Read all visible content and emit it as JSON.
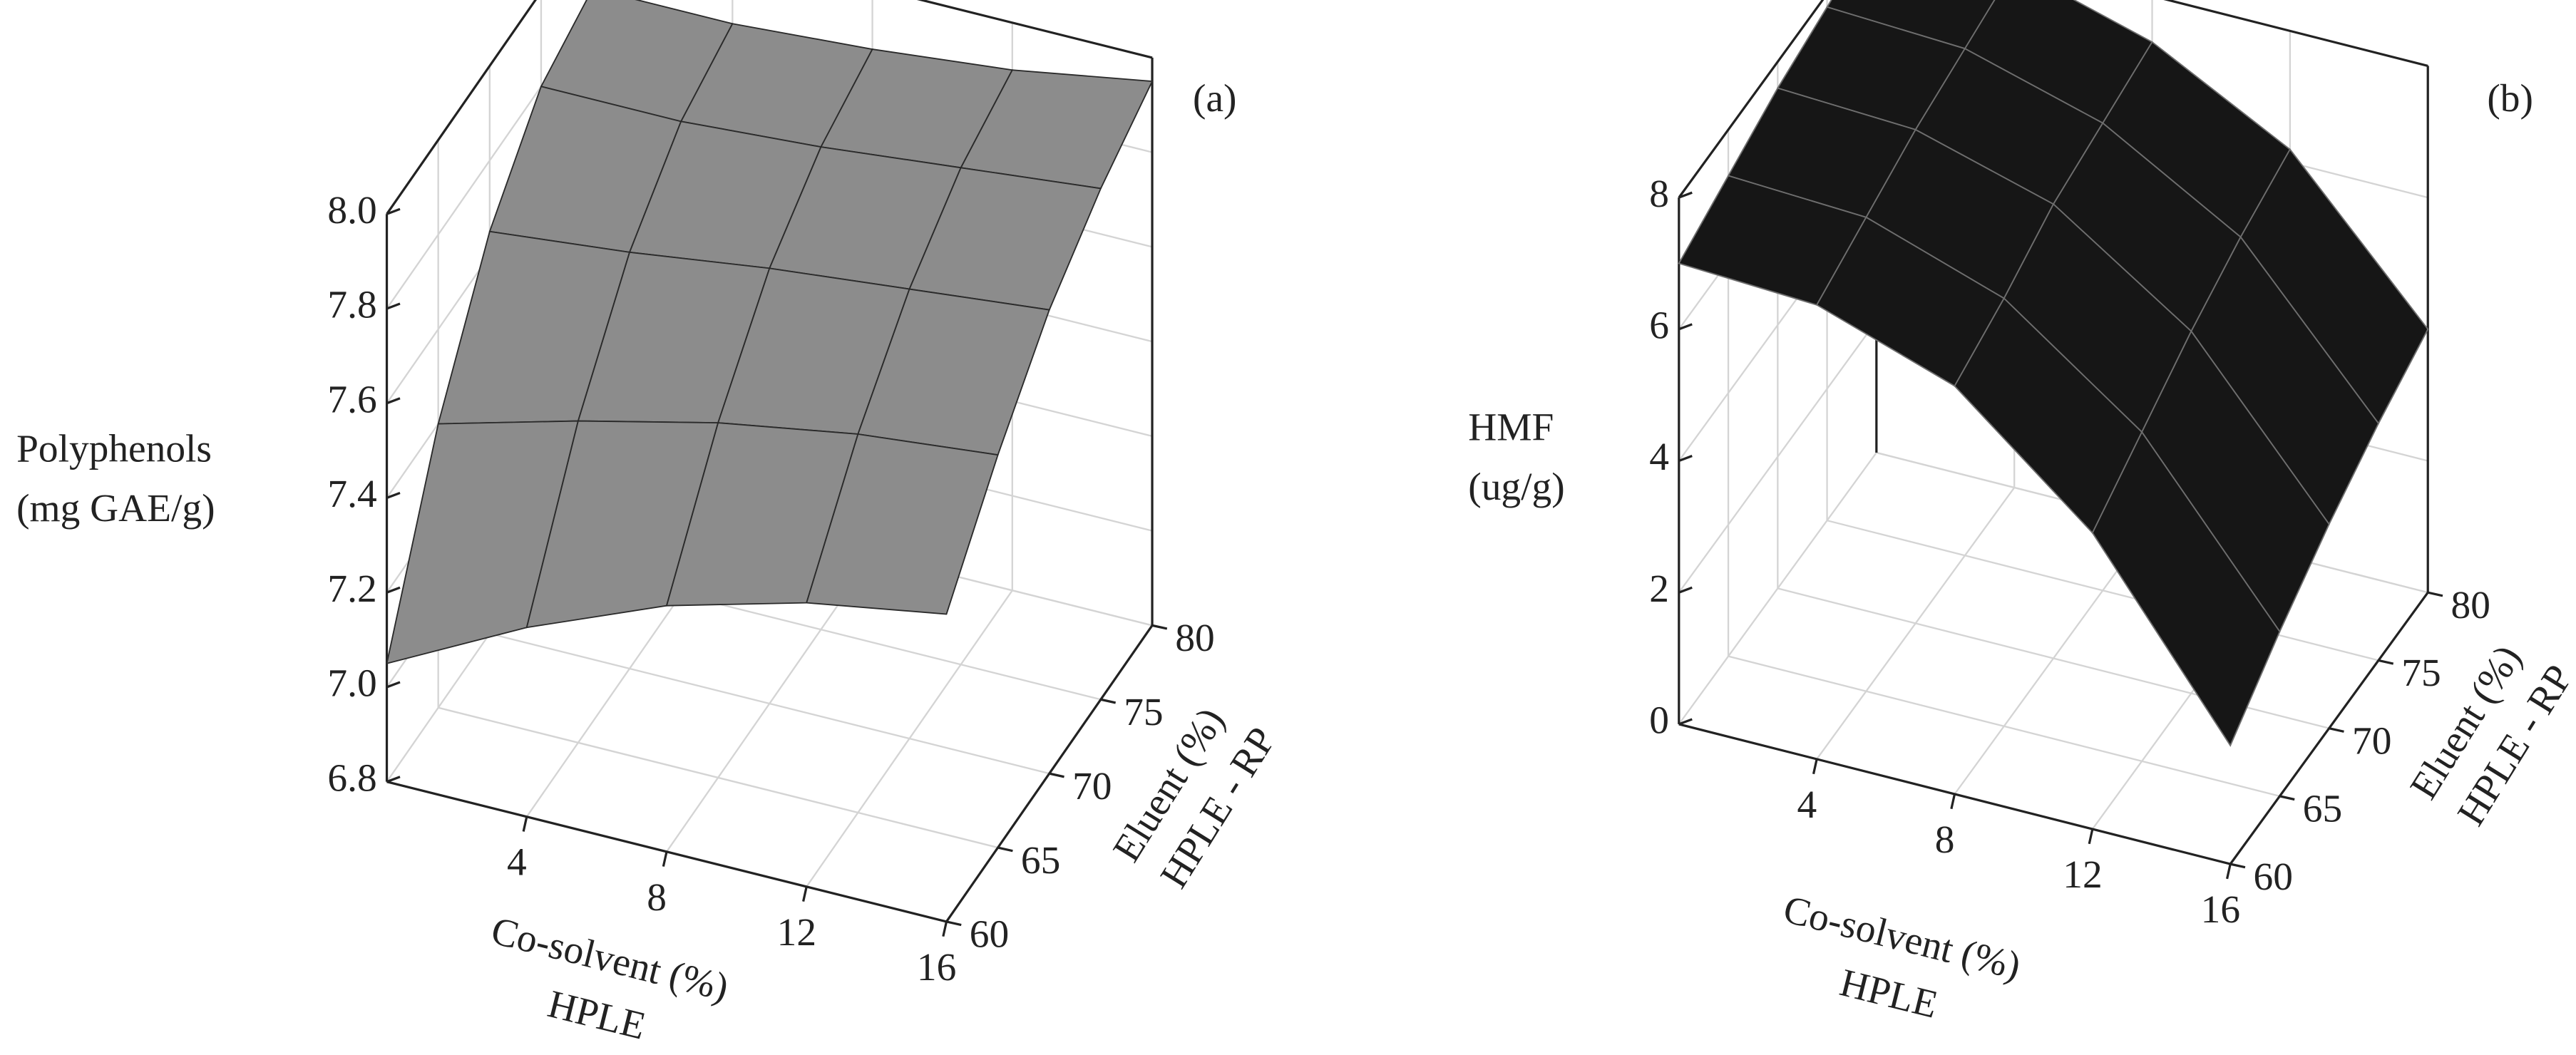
{
  "chart_data": [
    {
      "type": "surface",
      "label": "(a)",
      "color": "#8c8c8c",
      "edge_color": "#2a2a2a",
      "zlabel": [
        "Polyphenols",
        "(mg GAE/g)"
      ],
      "xlabel": [
        "Co-solvent (%)",
        "HPLE"
      ],
      "ylabel": [
        "Eluent (%)",
        "HPLE - RP"
      ],
      "x": [
        0,
        4,
        8,
        12,
        16
      ],
      "y": [
        60,
        65,
        70,
        75,
        80
      ],
      "values": [
        [
          7.05,
          7.2,
          7.32,
          7.4,
          7.45
        ],
        [
          7.4,
          7.48,
          7.55,
          7.6,
          7.63
        ],
        [
          7.65,
          7.68,
          7.72,
          7.75,
          7.78
        ],
        [
          7.8,
          7.8,
          7.82,
          7.85,
          7.88
        ],
        [
          7.85,
          7.85,
          7.87,
          7.9,
          7.95
        ]
      ],
      "xlim": [
        0,
        16
      ],
      "ylim": [
        60,
        80
      ],
      "zlim": [
        6.8,
        8.0
      ],
      "xticks": [
        4,
        8,
        12,
        16
      ],
      "yticks": [
        60,
        65,
        70,
        75,
        80
      ],
      "zticks": [
        6.8,
        {
          "value": 7.0,
          "label": "7.0"
        },
        7.2,
        7.4,
        7.6,
        7.8,
        {
          "value": 8.0,
          "label": "8.0"
        }
      ],
      "grid": true
    },
    {
      "type": "surface",
      "label": "(b)",
      "color": "#161616",
      "edge_color": "#6e6e6e",
      "zlabel": [
        "HMF",
        "(ug/g)"
      ],
      "xlabel": [
        "Co-solvent (%)",
        "HPLE"
      ],
      "ylabel": [
        "Eluent (%)",
        "HPLE - RP"
      ],
      "x": [
        0,
        4,
        8,
        12,
        16
      ],
      "y": [
        60,
        65,
        70,
        75,
        80
      ],
      "values": [
        [
          7.0,
          6.9,
          6.2,
          4.5,
          1.8
        ],
        [
          7.3,
          7.2,
          6.5,
          5.0,
          2.5
        ],
        [
          7.6,
          7.5,
          6.9,
          5.5,
          3.1
        ],
        [
          7.8,
          7.7,
          7.1,
          5.9,
          3.6
        ],
        [
          8.0,
          7.9,
          7.3,
          6.2,
          4.0
        ]
      ],
      "xlim": [
        0,
        16
      ],
      "ylim": [
        60,
        80
      ],
      "zlim": [
        0,
        8
      ],
      "xticks": [
        4,
        8,
        12,
        16
      ],
      "yticks": [
        60,
        65,
        70,
        75,
        80
      ],
      "zticks": [
        0,
        2,
        4,
        6,
        8
      ],
      "grid": true
    }
  ]
}
